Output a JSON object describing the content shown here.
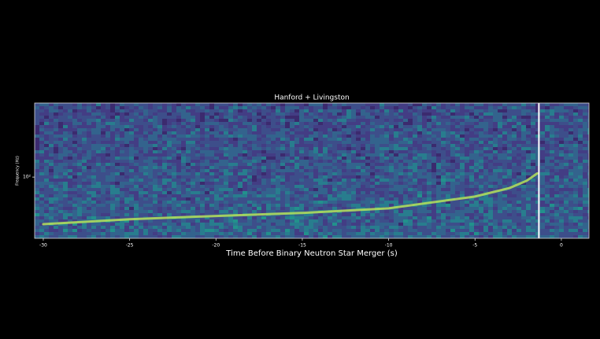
{
  "chart_data": {
    "type": "spectrogram",
    "title": "Hanford + Livingston",
    "xlabel": "Time Before Binary Neutron Star Merger (s)",
    "ylabel": "Frequency (Hz)",
    "xlim": [
      -30.5,
      1.6
    ],
    "xticks": [
      -30,
      -25,
      -20,
      -15,
      -10,
      -5,
      0
    ],
    "ylim": [
      20,
      700
    ],
    "yticks": [
      {
        "value": 100,
        "label": "10²"
      }
    ],
    "log_y": true,
    "merger_line_x": -1.3,
    "merger_line_color": "#ffffff",
    "series": [
      {
        "name": "chirp",
        "color": "#b5e35a",
        "x": [
          -30,
          -25,
          -20,
          -15,
          -10,
          -5,
          -3,
          -2,
          -1.4
        ],
        "values": [
          29,
          33,
          36,
          39,
          44,
          60,
          75,
          91,
          110
        ]
      }
    ]
  }
}
